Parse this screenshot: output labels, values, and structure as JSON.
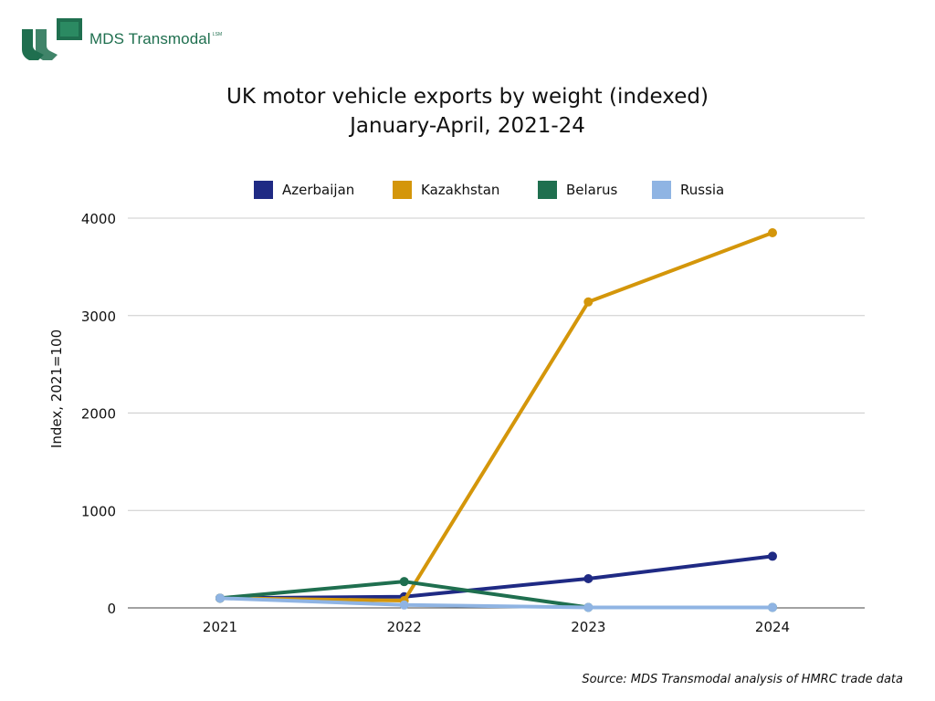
{
  "logo": {
    "text": "MDS Transmodal",
    "tm": "LSM",
    "brand_color": "#1f6f4f"
  },
  "title": {
    "line1": "UK motor vehicle exports by weight (indexed)",
    "line2": "January-April, 2021-24"
  },
  "source": "Source: MDS Transmodal analysis of HMRC trade data",
  "chart_data": {
    "type": "line",
    "title": "UK motor vehicle exports by weight (indexed) January-April, 2021-24",
    "xlabel": "",
    "ylabel": "Index, 2021=100",
    "categories": [
      "2021",
      "2022",
      "2023",
      "2024"
    ],
    "ylim": [
      0,
      4000
    ],
    "yticks": [
      0,
      1000,
      2000,
      3000,
      4000
    ],
    "grid": true,
    "legend_position": "top",
    "series": [
      {
        "name": "Azerbaijan",
        "color": "#1f2a84",
        "values": [
          100,
          115,
          300,
          530
        ]
      },
      {
        "name": "Kazakhstan",
        "color": "#d4960a",
        "values": [
          100,
          75,
          3140,
          3850
        ]
      },
      {
        "name": "Belarus",
        "color": "#1f6f4f",
        "values": [
          100,
          270,
          5,
          5
        ]
      },
      {
        "name": "Russia",
        "color": "#8fb4e3",
        "values": [
          100,
          30,
          5,
          5
        ]
      }
    ]
  }
}
